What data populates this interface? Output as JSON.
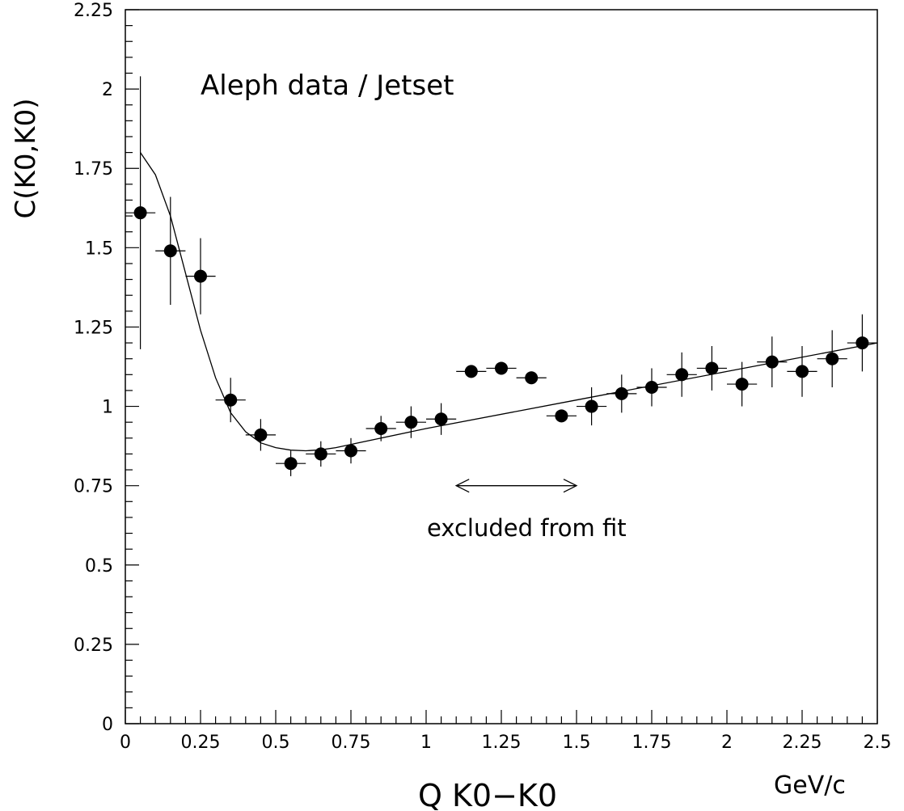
{
  "chart_data": {
    "type": "scatter",
    "title": "",
    "xlabel": "Q K0−K0",
    "xunit": "GeV/c",
    "ylabel": "C(K0,K0)",
    "xlim": [
      0,
      2.5
    ],
    "ylim": [
      0,
      2.25
    ],
    "grid": false,
    "x_ticks": [
      "0",
      "0.25",
      "0.5",
      "0.75",
      "1",
      "1.25",
      "1.5",
      "1.75",
      "2",
      "2.25",
      "2.5"
    ],
    "y_ticks": [
      "0",
      "0.25",
      "0.5",
      "0.75",
      "1",
      "1.25",
      "1.5",
      "1.75",
      "2",
      "2.25"
    ],
    "annotations": {
      "top_label": "Aleph data / Jetset",
      "excluded_label": "excluded from fit",
      "excluded_range": [
        1.1,
        1.5
      ]
    },
    "series": [
      {
        "x": [
          0.05,
          0.15,
          0.25,
          0.35,
          0.45,
          0.55,
          0.65,
          0.75,
          0.85,
          0.95,
          1.05,
          1.15,
          1.25,
          1.35,
          1.45,
          1.55,
          1.65,
          1.75,
          1.85,
          1.95,
          2.05,
          2.15,
          2.25,
          2.35,
          2.45
        ],
        "y": [
          1.61,
          1.49,
          1.41,
          1.02,
          0.91,
          0.82,
          0.85,
          0.86,
          0.93,
          0.95,
          0.96,
          1.11,
          1.12,
          1.09,
          0.97,
          1.0,
          1.04,
          1.06,
          1.1,
          1.12,
          1.07,
          1.14,
          1.11,
          1.15,
          1.2
        ],
        "yerr": [
          0.43,
          0.17,
          0.12,
          0.07,
          0.05,
          0.04,
          0.04,
          0.04,
          0.04,
          0.05,
          0.05,
          0.02,
          0.02,
          0.02,
          0.02,
          0.06,
          0.06,
          0.06,
          0.07,
          0.07,
          0.07,
          0.08,
          0.08,
          0.09,
          0.09
        ],
        "xerr": 0.05
      }
    ],
    "fit_curve": {
      "x": [
        0.05,
        0.1,
        0.15,
        0.2,
        0.25,
        0.3,
        0.35,
        0.4,
        0.45,
        0.5,
        0.55,
        0.6,
        0.65,
        0.7,
        0.75,
        1.0,
        1.5,
        2.0,
        2.5
      ],
      "y": [
        1.8,
        1.73,
        1.6,
        1.42,
        1.24,
        1.09,
        0.98,
        0.92,
        0.885,
        0.87,
        0.862,
        0.86,
        0.863,
        0.87,
        0.88,
        0.93,
        1.02,
        1.11,
        1.2
      ]
    }
  }
}
